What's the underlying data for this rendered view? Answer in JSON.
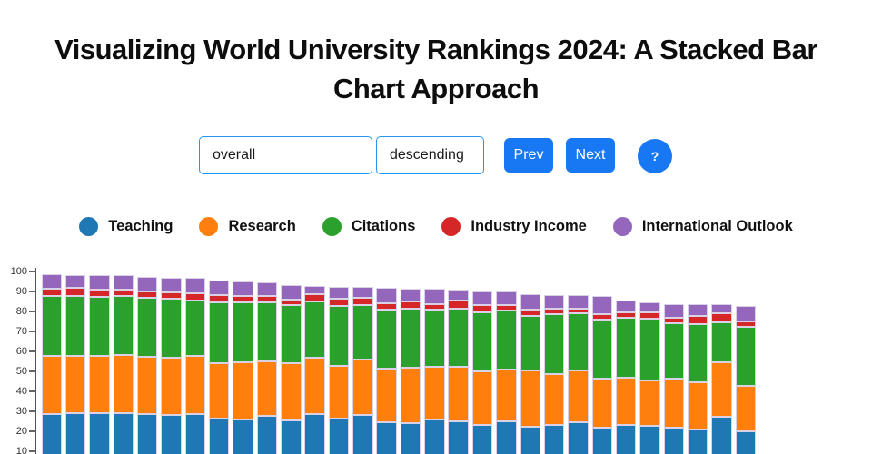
{
  "page": {
    "title_lines": [
      "Visualizing World University Rankings 2024: A Stacked Bar",
      "Chart Approach"
    ]
  },
  "controls": {
    "metric_value": "overall",
    "order_value": "descending",
    "prev_label": "Prev",
    "next_label": "Next",
    "help_label": "?"
  },
  "colors": {
    "accent_blue": "#1877f2",
    "input_border": "#2196f3",
    "bar_outline": "#d9d2e6"
  },
  "chart_data": {
    "type": "bar",
    "stacked": true,
    "title": "",
    "xlabel": "",
    "ylabel": "",
    "ylim": [
      0,
      100
    ],
    "grid": false,
    "legend_position": "top",
    "yticks": [
      100,
      90,
      80,
      70,
      60,
      50,
      40,
      30,
      20,
      10
    ],
    "series_names": [
      "Teaching",
      "Research",
      "Citations",
      "Industry Income",
      "International Outlook"
    ],
    "series_colors": [
      "#1f77b4",
      "#ff7f0e",
      "#2ca02c",
      "#d62728",
      "#9467bd"
    ],
    "bars": [
      [
        28.5,
        29.2,
        29.9,
        3.8,
        7.2
      ],
      [
        28.9,
        29.0,
        29.7,
        4.2,
        6.4
      ],
      [
        28.9,
        28.8,
        29.4,
        4.0,
        7.1
      ],
      [
        28.9,
        29.3,
        29.4,
        3.2,
        7.3
      ],
      [
        28.8,
        28.5,
        29.4,
        3.2,
        7.4
      ],
      [
        28.3,
        28.7,
        29.4,
        3.1,
        7.5
      ],
      [
        28.8,
        28.8,
        28.0,
        3.6,
        7.5
      ],
      [
        26.5,
        27.4,
        30.6,
        3.5,
        7.5
      ],
      [
        25.8,
        28.7,
        30.0,
        3.1,
        7.3
      ],
      [
        27.7,
        27.3,
        29.5,
        3.4,
        6.5
      ],
      [
        25.5,
        28.4,
        29.1,
        2.8,
        7.5
      ],
      [
        28.5,
        28.5,
        27.9,
        3.9,
        4.1
      ],
      [
        26.2,
        26.5,
        30.0,
        3.7,
        6.0
      ],
      [
        28.2,
        27.8,
        27.3,
        3.5,
        5.6
      ],
      [
        24.7,
        26.8,
        29.6,
        3.1,
        7.5
      ],
      [
        24.2,
        27.8,
        29.5,
        3.4,
        6.5
      ],
      [
        25.8,
        26.6,
        28.4,
        3.0,
        7.6
      ],
      [
        25.1,
        27.3,
        29.1,
        3.8,
        5.6
      ],
      [
        23.2,
        26.8,
        29.7,
        3.6,
        6.8
      ],
      [
        25.0,
        25.8,
        29.5,
        2.7,
        6.9
      ],
      [
        22.4,
        28.1,
        27.2,
        3.4,
        7.5
      ],
      [
        23.2,
        25.3,
        30.3,
        2.7,
        6.8
      ],
      [
        24.7,
        25.8,
        28.7,
        2.0,
        7.1
      ],
      [
        22.0,
        24.2,
        29.6,
        3.0,
        8.8
      ],
      [
        23.2,
        23.8,
        30.0,
        2.7,
        5.9
      ],
      [
        22.7,
        22.8,
        30.7,
        3.3,
        5.0
      ],
      [
        21.7,
        24.5,
        28.0,
        2.8,
        6.8
      ],
      [
        20.9,
        23.5,
        29.2,
        4.1,
        5.8
      ],
      [
        27.4,
        27.1,
        20.2,
        4.5,
        4.3
      ],
      [
        20.1,
        22.8,
        29.5,
        2.6,
        7.7
      ]
    ]
  }
}
